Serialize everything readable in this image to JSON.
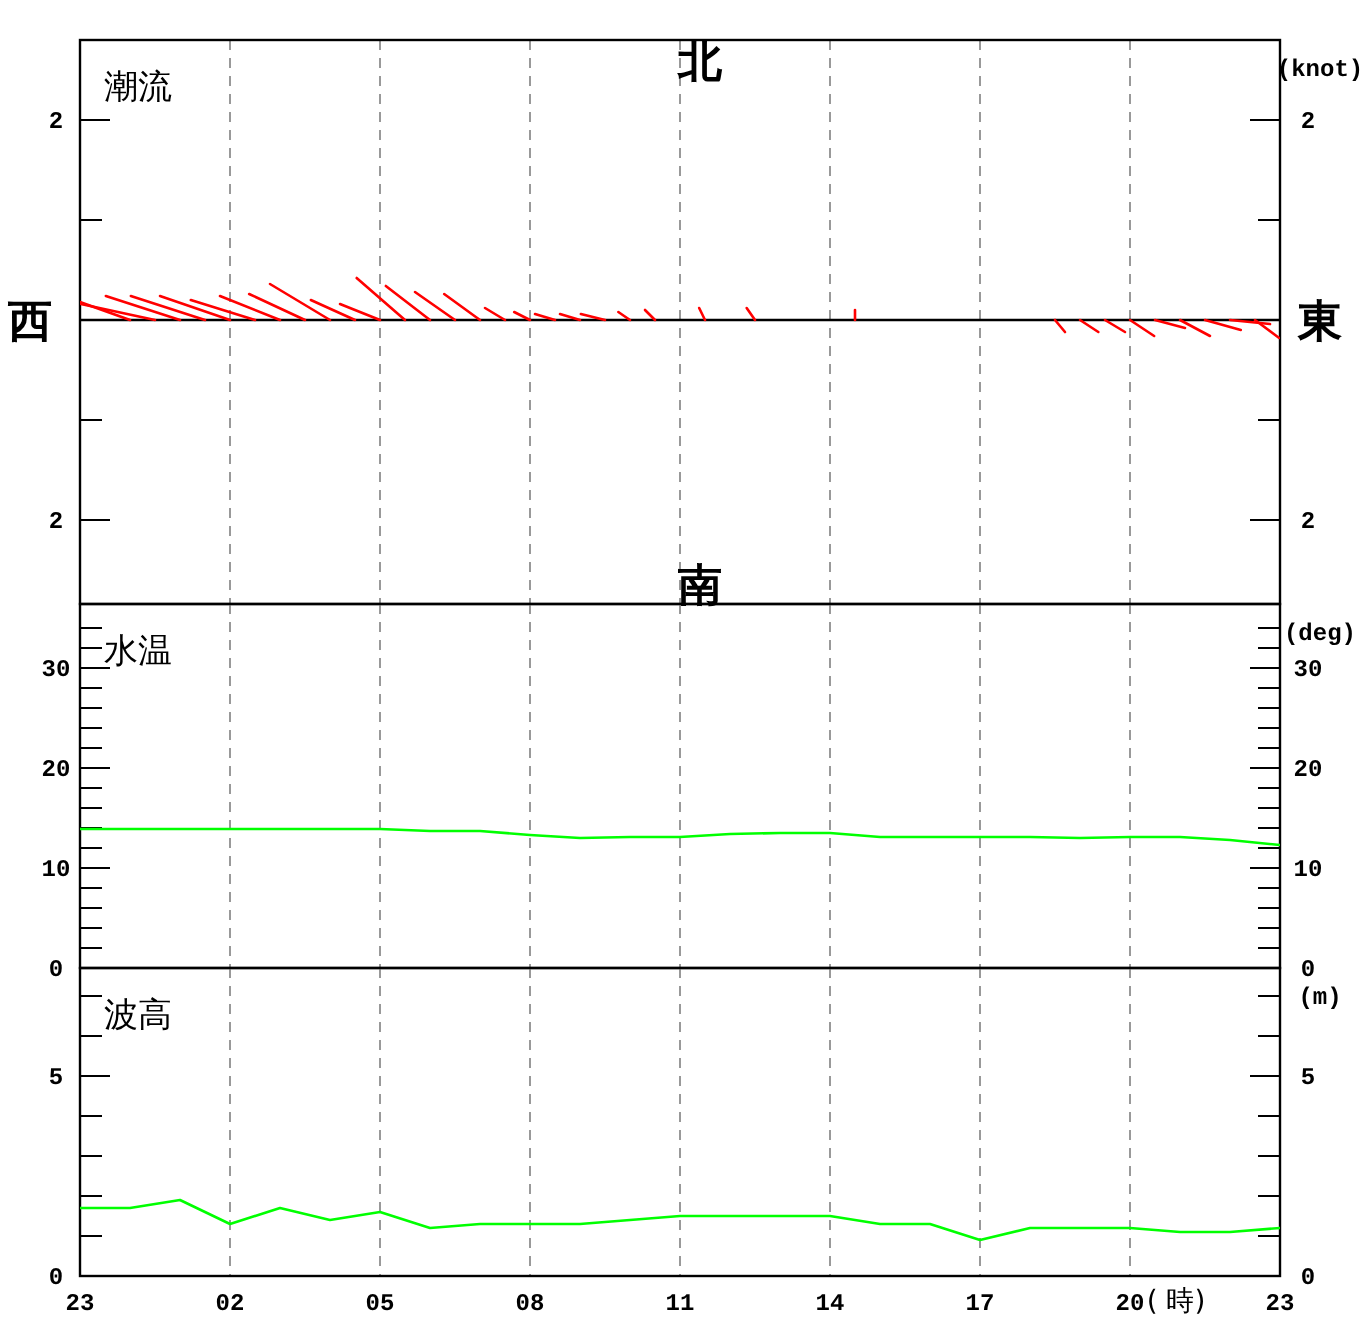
{
  "chart_data": [
    {
      "type": "line",
      "title": "潮流",
      "y2label": "(knot)",
      "annotations": [
        "北",
        "南",
        "西",
        "東"
      ],
      "xlim": [
        "--01-01T23:00",
        "--01-02T23:00"
      ],
      "xticks": [
        {
          "value": "--01-01T23:00",
          "label": null
        },
        {
          "value": "--01-02T02:00",
          "label": null
        },
        {
          "value": "--01-02T05:00",
          "label": null
        },
        {
          "value": "--01-02T08:00",
          "label": null
        },
        {
          "value": "--01-02T11:00",
          "label": null
        },
        {
          "value": "--01-02T14:00",
          "label": null
        },
        {
          "value": "--01-02T17:00",
          "label": null
        },
        {
          "value": "--01-02T20:00",
          "label": null
        },
        {
          "value": "--01-02T23:00",
          "label": null
        }
      ],
      "ylim": [
        -2.84,
        2.8
      ],
      "yticks": [
        2,
        {
          "value": 1,
          "label": null
        },
        {
          "value": -1,
          "label": null
        },
        {
          "value": -2,
          "label": "2"
        }
      ],
      "y2lim": [
        -2.84,
        2.8
      ],
      "y2ticks": [
        2,
        {
          "value": 1,
          "label": null
        },
        {
          "value": -1,
          "label": null
        },
        {
          "value": -2,
          "label": "2"
        }
      ],
      "grid": "x",
      "tick_labels": "y",
      "ref_lines": [
        {
          "axis": "y",
          "value": 0,
          "color": "#000000"
        }
      ],
      "series": [
        {
          "color": "#ff0000",
          "x": [
            "--01-02T00:00",
            "--01-01T23:00"
          ],
          "values": [
            0,
            0.18
          ]
        },
        {
          "color": "#ff0000",
          "x": [
            "--01-02T00:30",
            "--01-01T23:01"
          ],
          "values": [
            0,
            0.16
          ]
        },
        {
          "color": "#ff0000",
          "x": [
            "--01-02T01:00",
            "--01-01T23:31"
          ],
          "values": [
            0,
            0.24
          ]
        },
        {
          "color": "#ff0000",
          "x": [
            "--01-02T01:30",
            "--01-02T00:01"
          ],
          "values": [
            0,
            0.24
          ]
        },
        {
          "color": "#ff0000",
          "x": [
            "--01-02T02:00",
            "--01-02T00:36"
          ],
          "values": [
            0,
            0.24
          ]
        },
        {
          "color": "#ff0000",
          "x": [
            "--01-02T02:30",
            "--01-02T01:13"
          ],
          "values": [
            0,
            0.2
          ]
        },
        {
          "color": "#ff0000",
          "x": [
            "--01-02T03:00",
            "--01-02T01:48"
          ],
          "values": [
            0,
            0.24
          ]
        },
        {
          "color": "#ff0000",
          "x": [
            "--01-02T03:30",
            "--01-02T02:23"
          ],
          "values": [
            0,
            0.26
          ]
        },
        {
          "color": "#ff0000",
          "x": [
            "--01-02T04:00",
            "--01-02T02:48"
          ],
          "values": [
            0,
            0.36
          ]
        },
        {
          "color": "#ff0000",
          "x": [
            "--01-02T04:30",
            "--01-02T03:37"
          ],
          "values": [
            0,
            0.2
          ]
        },
        {
          "color": "#ff0000",
          "x": [
            "--01-02T05:00",
            "--01-02T04:12"
          ],
          "values": [
            0,
            0.16
          ]
        },
        {
          "color": "#ff0000",
          "x": [
            "--01-02T05:30",
            "--01-02T04:32"
          ],
          "values": [
            0,
            0.42
          ]
        },
        {
          "color": "#ff0000",
          "x": [
            "--01-02T06:00",
            "--01-02T05:07"
          ],
          "values": [
            0,
            0.34
          ]
        },
        {
          "color": "#ff0000",
          "x": [
            "--01-02T06:30",
            "--01-02T05:42"
          ],
          "values": [
            0,
            0.28
          ]
        },
        {
          "color": "#ff0000",
          "x": [
            "--01-02T07:00",
            "--01-02T06:17"
          ],
          "values": [
            0,
            0.26
          ]
        },
        {
          "color": "#ff0000",
          "x": [
            "--01-02T07:30",
            "--01-02T07:06"
          ],
          "values": [
            0,
            0.12
          ]
        },
        {
          "color": "#ff0000",
          "x": [
            "--01-02T08:00",
            "--01-02T07:41"
          ],
          "values": [
            0,
            0.08
          ]
        },
        {
          "color": "#ff0000",
          "x": [
            "--01-02T08:30",
            "--01-02T08:06"
          ],
          "values": [
            0,
            0.06
          ]
        },
        {
          "color": "#ff0000",
          "x": [
            "--01-02T09:00",
            "--01-02T08:36"
          ],
          "values": [
            0,
            0.06
          ]
        },
        {
          "color": "#ff0000",
          "x": [
            "--01-02T09:30",
            "--01-02T09:01"
          ],
          "values": [
            0,
            0.06
          ]
        },
        {
          "color": "#ff0000",
          "x": [
            "--01-02T10:00",
            "--01-02T09:46"
          ],
          "values": [
            0,
            0.08
          ]
        },
        {
          "color": "#ff0000",
          "x": [
            "--01-02T10:30",
            "--01-02T10:18"
          ],
          "values": [
            0,
            0.1
          ]
        },
        {
          "color": "#ff0000",
          "x": [
            "--01-02T11:30",
            "--01-02T11:23"
          ],
          "values": [
            0,
            0.12
          ]
        },
        {
          "color": "#ff0000",
          "x": [
            "--01-02T12:30",
            "--01-02T12:20"
          ],
          "values": [
            0,
            0.12
          ]
        },
        {
          "color": "#ff0000",
          "x": [
            "--01-02T14:30",
            "--01-02T14:30"
          ],
          "values": [
            0,
            0.1
          ]
        },
        {
          "color": "#ff0000",
          "x": [
            "--01-02T18:30",
            "--01-02T18:42"
          ],
          "values": [
            0,
            -0.12
          ]
        },
        {
          "color": "#ff0000",
          "x": [
            "--01-02T19:00",
            "--01-02T19:22"
          ],
          "values": [
            0,
            -0.12
          ]
        },
        {
          "color": "#ff0000",
          "x": [
            "--01-02T19:30",
            "--01-02T19:54"
          ],
          "values": [
            0,
            -0.12
          ]
        },
        {
          "color": "#ff0000",
          "x": [
            "--01-02T20:00",
            "--01-02T20:29"
          ],
          "values": [
            0,
            -0.16
          ]
        },
        {
          "color": "#ff0000",
          "x": [
            "--01-02T20:30",
            "--01-02T21:06"
          ],
          "values": [
            0,
            -0.08
          ]
        },
        {
          "color": "#ff0000",
          "x": [
            "--01-02T21:00",
            "--01-02T21:36"
          ],
          "values": [
            0,
            -0.16
          ]
        },
        {
          "color": "#ff0000",
          "x": [
            "--01-02T21:30",
            "--01-02T22:13"
          ],
          "values": [
            0,
            -0.1
          ]
        },
        {
          "color": "#ff0000",
          "x": [
            "--01-02T22:00",
            "--01-02T22:48"
          ],
          "values": [
            0,
            -0.04
          ]
        },
        {
          "color": "#ff0000",
          "x": [
            "--01-02T22:30",
            "--01-02T22:59"
          ],
          "values": [
            0,
            -0.18
          ]
        }
      ]
    },
    {
      "type": "line",
      "title": "水温",
      "y2label": "(deg)",
      "xlim": [
        "--01-01T23:00",
        "--01-02T23:00"
      ],
      "xticks": [
        {
          "value": "--01-01T23:00",
          "label": null
        },
        {
          "value": "--01-02T02:00",
          "label": null
        },
        {
          "value": "--01-02T05:00",
          "label": null
        },
        {
          "value": "--01-02T08:00",
          "label": null
        },
        {
          "value": "--01-02T11:00",
          "label": null
        },
        {
          "value": "--01-02T14:00",
          "label": null
        },
        {
          "value": "--01-02T17:00",
          "label": null
        },
        {
          "value": "--01-02T20:00",
          "label": null
        },
        {
          "value": "--01-02T23:00",
          "label": null
        }
      ],
      "ylim": [
        0,
        36.4
      ],
      "yticks": [
        0,
        {
          "value": 2,
          "label": null
        },
        {
          "value": 4,
          "label": null
        },
        {
          "value": 6,
          "label": null
        },
        {
          "value": 8,
          "label": null
        },
        10,
        {
          "value": 12,
          "label": null
        },
        {
          "value": 14,
          "label": null
        },
        {
          "value": 16,
          "label": null
        },
        {
          "value": 18,
          "label": null
        },
        20,
        {
          "value": 22,
          "label": null
        },
        {
          "value": 24,
          "label": null
        },
        {
          "value": 26,
          "label": null
        },
        {
          "value": 28,
          "label": null
        },
        30,
        {
          "value": 32,
          "label": null
        },
        {
          "value": 34,
          "label": null
        }
      ],
      "y2lim": [
        0,
        36.4
      ],
      "y2ticks": [
        0,
        {
          "value": 2,
          "label": null
        },
        {
          "value": 4,
          "label": null
        },
        {
          "value": 6,
          "label": null
        },
        {
          "value": 8,
          "label": null
        },
        10,
        {
          "value": 12,
          "label": null
        },
        {
          "value": 14,
          "label": null
        },
        {
          "value": 16,
          "label": null
        },
        {
          "value": 18,
          "label": null
        },
        20,
        {
          "value": 22,
          "label": null
        },
        {
          "value": 24,
          "label": null
        },
        {
          "value": 26,
          "label": null
        },
        {
          "value": 28,
          "label": null
        },
        30,
        {
          "value": 32,
          "label": null
        },
        {
          "value": 34,
          "label": null
        }
      ],
      "grid": "x",
      "tick_labels": "y",
      "x": [
        "--01-01T23:00",
        "--01-02T00:00",
        "--01-02T01:00",
        "--01-02T02:00",
        "--01-02T03:00",
        "--01-02T04:00",
        "--01-02T05:00",
        "--01-02T06:00",
        "--01-02T07:00",
        "--01-02T08:00",
        "--01-02T09:00",
        "--01-02T10:00",
        "--01-02T11:00",
        "--01-02T12:00",
        "--01-02T13:00",
        "--01-02T14:00",
        "--01-02T15:00",
        "--01-02T16:00",
        "--01-02T17:00",
        "--01-02T18:00",
        "--01-02T19:00",
        "--01-02T20:00",
        "--01-02T21:00",
        "--01-02T22:00",
        "--01-02T23:00"
      ],
      "series": [
        {
          "color": "#00ff00",
          "values": [
            13.9,
            13.9,
            13.9,
            13.9,
            13.9,
            13.9,
            13.9,
            13.7,
            13.7,
            13.3,
            13.0,
            13.1,
            13.1,
            13.4,
            13.5,
            13.5,
            13.1,
            13.1,
            13.1,
            13.1,
            13.0,
            13.1,
            13.1,
            12.8,
            12.3
          ]
        }
      ]
    },
    {
      "type": "line",
      "title": "波高",
      "y2label": "(m)",
      "xlabel": "( 時)",
      "xlim": [
        "--01-01T23:00",
        "--01-02T23:00"
      ],
      "xticks": [
        {
          "value": "--01-01T23:00",
          "label": "23"
        },
        {
          "value": "--01-02T02:00",
          "label": "02"
        },
        {
          "value": "--01-02T05:00",
          "label": "05"
        },
        {
          "value": "--01-02T08:00",
          "label": "08"
        },
        {
          "value": "--01-02T11:00",
          "label": "11"
        },
        {
          "value": "--01-02T14:00",
          "label": "14"
        },
        {
          "value": "--01-02T17:00",
          "label": "17"
        },
        {
          "value": "--01-02T20:00",
          "label": "20"
        },
        {
          "value": "--01-02T23:00",
          "label": "23"
        }
      ],
      "ylim": [
        0,
        7.7
      ],
      "yticks": [
        0,
        {
          "value": 1,
          "label": null
        },
        {
          "value": 2,
          "label": null
        },
        {
          "value": 3,
          "label": null
        },
        {
          "value": 4,
          "label": null
        },
        5,
        {
          "value": 6,
          "label": null
        },
        {
          "value": 7,
          "label": null
        }
      ],
      "y2lim": [
        0,
        7.7
      ],
      "y2ticks": [
        0,
        {
          "value": 1,
          "label": null
        },
        {
          "value": 2,
          "label": null
        },
        {
          "value": 3,
          "label": null
        },
        {
          "value": 4,
          "label": null
        },
        5,
        {
          "value": 6,
          "label": null
        },
        {
          "value": 7,
          "label": null
        }
      ],
      "grid": "x",
      "x": [
        "--01-01T23:00",
        "--01-02T00:00",
        "--01-02T01:00",
        "--01-02T02:00",
        "--01-02T03:00",
        "--01-02T04:00",
        "--01-02T05:00",
        "--01-02T06:00",
        "--01-02T07:00",
        "--01-02T08:00",
        "--01-02T09:00",
        "--01-02T10:00",
        "--01-02T11:00",
        "--01-02T12:00",
        "--01-02T13:00",
        "--01-02T14:00",
        "--01-02T15:00",
        "--01-02T16:00",
        "--01-02T17:00",
        "--01-02T18:00",
        "--01-02T19:00",
        "--01-02T20:00",
        "--01-02T21:00",
        "--01-02T22:00",
        "--01-02T23:00"
      ],
      "series": [
        {
          "color": "#00ff00",
          "values": [
            1.7,
            1.7,
            1.9,
            1.3,
            1.7,
            1.4,
            1.6,
            1.2,
            1.3,
            1.3,
            1.3,
            1.4,
            1.5,
            1.5,
            1.5,
            1.5,
            1.3,
            1.3,
            0.9,
            1.2,
            1.2,
            1.2,
            1.1,
            1.1,
            1.2
          ]
        }
      ]
    }
  ]
}
